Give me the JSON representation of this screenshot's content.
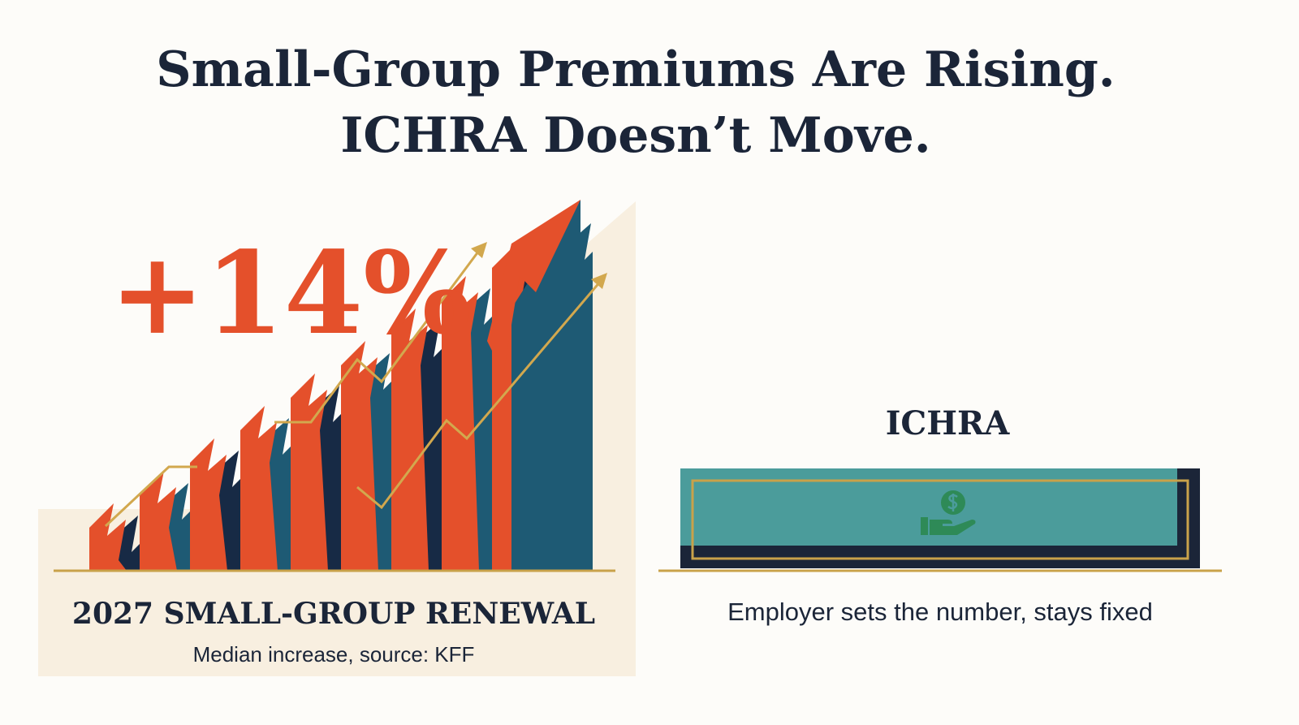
{
  "title": [
    "Small-Group Premiums Are Rising.",
    "ICHRA Doesn’t Move."
  ],
  "left": {
    "stat": "+14%",
    "label": "2027 SMALL-GROUP RENEWAL",
    "caption": "Median increase, source: KFF"
  },
  "right": {
    "label": "ICHRA",
    "caption": "Employer sets the number, stays fixed"
  }
}
